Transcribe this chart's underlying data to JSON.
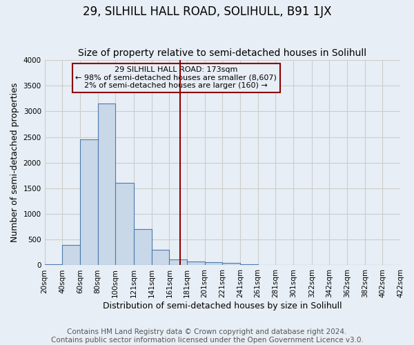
{
  "title": "29, SILHILL HALL ROAD, SOLIHULL, B91 1JX",
  "subtitle": "Size of property relative to semi-detached houses in Solihull",
  "xlabel": "Distribution of semi-detached houses by size in Solihull",
  "ylabel": "Number of semi-detached properties",
  "footnote": "Contains HM Land Registry data © Crown copyright and database right 2024.\nContains public sector information licensed under the Open Government Licence v3.0.",
  "bar_left_edges": [
    20,
    40,
    60,
    80,
    100,
    121,
    141,
    161,
    181,
    201,
    221,
    241,
    261,
    281,
    301,
    322,
    342,
    362,
    382,
    402
  ],
  "bar_widths": [
    20,
    20,
    20,
    20,
    21,
    20,
    20,
    20,
    20,
    20,
    20,
    20,
    20,
    20,
    21,
    20,
    20,
    20,
    20,
    20
  ],
  "bar_heights": [
    20,
    400,
    2450,
    3150,
    1600,
    700,
    300,
    120,
    70,
    55,
    40,
    20,
    5,
    3,
    2,
    1,
    1,
    0,
    0,
    0
  ],
  "bar_facecolor": "#c8d8e8",
  "bar_edgecolor": "#4a7aad",
  "vline_x": 173,
  "vline_color": "#8b0000",
  "annotation_text": "29 SILHILL HALL ROAD: 173sqm\n← 98% of semi-detached houses are smaller (8,607)\n2% of semi-detached houses are larger (160) →",
  "ylim": [
    0,
    4000
  ],
  "yticks": [
    0,
    500,
    1000,
    1500,
    2000,
    2500,
    3000,
    3500,
    4000
  ],
  "xtick_labels": [
    "20sqm",
    "40sqm",
    "60sqm",
    "80sqm",
    "100sqm",
    "121sqm",
    "141sqm",
    "161sqm",
    "181sqm",
    "201sqm",
    "221sqm",
    "241sqm",
    "261sqm",
    "281sqm",
    "301sqm",
    "322sqm",
    "342sqm",
    "362sqm",
    "382sqm",
    "402sqm",
    "422sqm"
  ],
  "grid_color": "#cccccc",
  "bg_color": "#e8eef5",
  "title_fontsize": 12,
  "subtitle_fontsize": 10,
  "axis_label_fontsize": 9,
  "tick_fontsize": 7.5,
  "annotation_fontsize": 8,
  "footnote_fontsize": 7.5
}
